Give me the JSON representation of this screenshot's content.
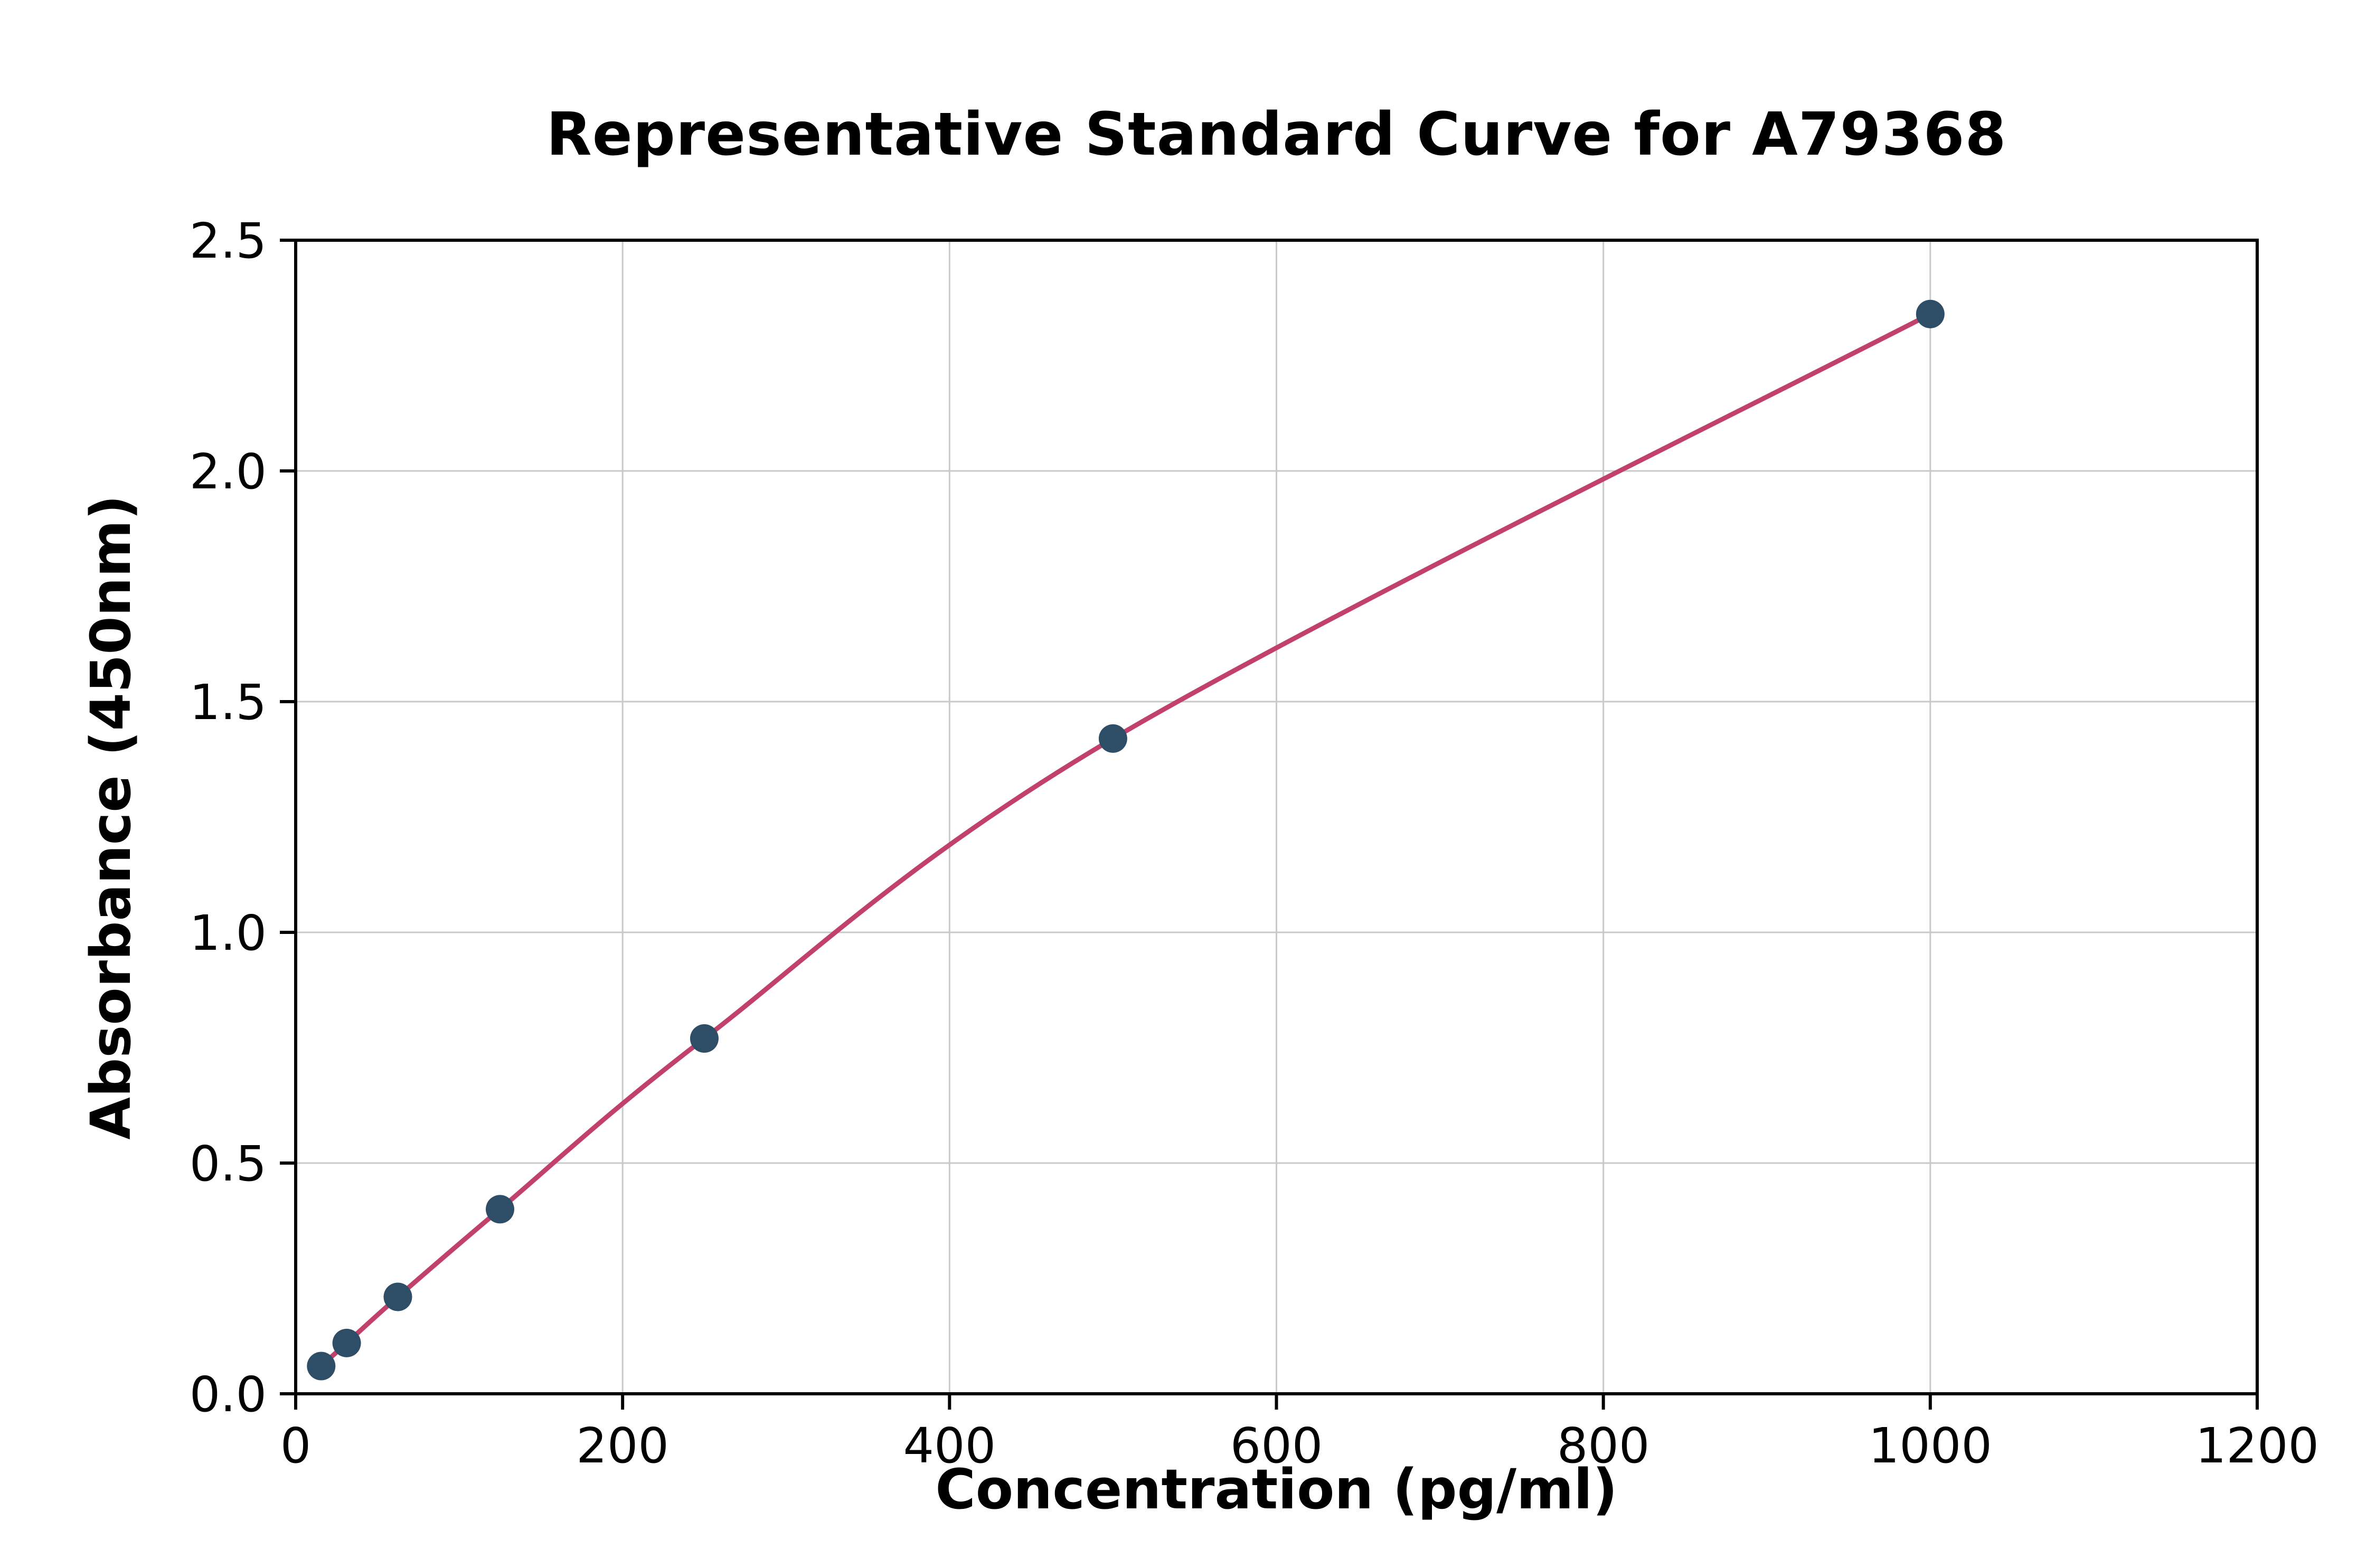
{
  "chart_data": {
    "type": "scatter",
    "title": "Representative Standard Curve for A79368",
    "xlabel": "Concentration (pg/ml)",
    "ylabel": "Absorbance (450nm)",
    "xlim": [
      0,
      1200
    ],
    "ylim": [
      0,
      2.5
    ],
    "xticks": [
      0,
      200,
      400,
      600,
      800,
      1000,
      1200
    ],
    "xtick_labels": [
      "0",
      "200",
      "400",
      "600",
      "800",
      "1000",
      "1200"
    ],
    "yticks": [
      0.0,
      0.5,
      1.0,
      1.5,
      2.0,
      2.5
    ],
    "ytick_labels": [
      "0.0",
      "0.5",
      "1.0",
      "1.5",
      "2.0",
      "2.5"
    ],
    "grid": true,
    "legend": "none",
    "points": [
      {
        "x": 15.6,
        "y": 0.06
      },
      {
        "x": 31.2,
        "y": 0.11
      },
      {
        "x": 62.5,
        "y": 0.21
      },
      {
        "x": 125,
        "y": 0.4
      },
      {
        "x": 250,
        "y": 0.77
      },
      {
        "x": 500,
        "y": 1.42
      },
      {
        "x": 1000,
        "y": 2.34
      }
    ],
    "colors": {
      "curve": "#c2416b",
      "point": "#2e4d66",
      "grid": "#c9c9c9",
      "axis": "#000000"
    }
  }
}
